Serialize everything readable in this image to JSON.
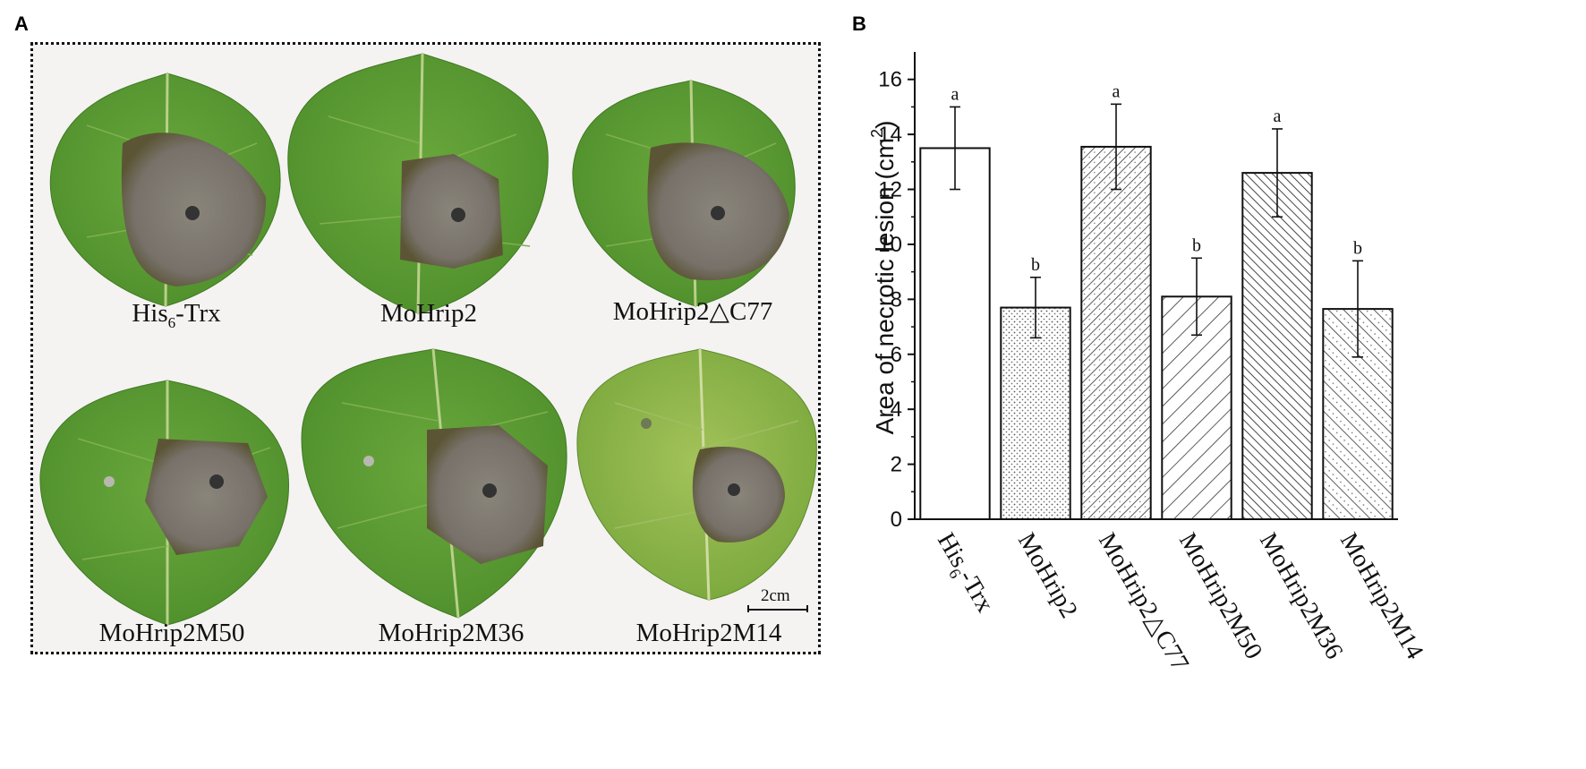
{
  "panel_a": {
    "letter": "A",
    "leaves": [
      {
        "label": "His",
        "sub": "6",
        "label_after": "-Trx"
      },
      {
        "label": "MoHrip2"
      },
      {
        "label": "MoHrip2△C77"
      },
      {
        "label": "MoHrip2M50"
      },
      {
        "label": "MoHrip2M36"
      },
      {
        "label": "MoHrip2M14"
      }
    ],
    "scale_bar": "2cm",
    "colors": {
      "leaf": "#5e9e36",
      "leaf_pale": "#8fb84a",
      "lesion": "#7a7468",
      "lesion_edge": "#5e5a3a",
      "background": "#f5f2f2"
    }
  },
  "panel_b": {
    "letter": "B"
  },
  "chart_data": {
    "type": "bar",
    "categories": [
      "His6-Trx",
      "MoHrip2",
      "MoHrip2△C77",
      "MoHrip2M50",
      "MoHrip2M36",
      "MoHrip2M14"
    ],
    "values": [
      13.5,
      7.7,
      13.55,
      8.1,
      12.6,
      7.65
    ],
    "error": [
      1.5,
      1.1,
      1.55,
      1.4,
      1.6,
      1.75
    ],
    "significance": [
      "a",
      "b",
      "a",
      "b",
      "a",
      "b"
    ],
    "patterns": [
      "none",
      "dots",
      "diagonal-dense",
      "diagonal-sparse",
      "back-diagonal",
      "back-diagonal-dots"
    ],
    "ylabel": "Area of necrotic lesion (cm",
    "ylabel_sup": "2",
    "ylabel_end": ")",
    "ylim": [
      0,
      17
    ],
    "yticks": [
      0,
      2,
      4,
      6,
      8,
      10,
      12,
      14,
      16
    ],
    "tick_labels": [
      "0",
      "2",
      "4",
      "6",
      "8",
      "10",
      "12",
      "14",
      "16"
    ],
    "grid": false
  }
}
